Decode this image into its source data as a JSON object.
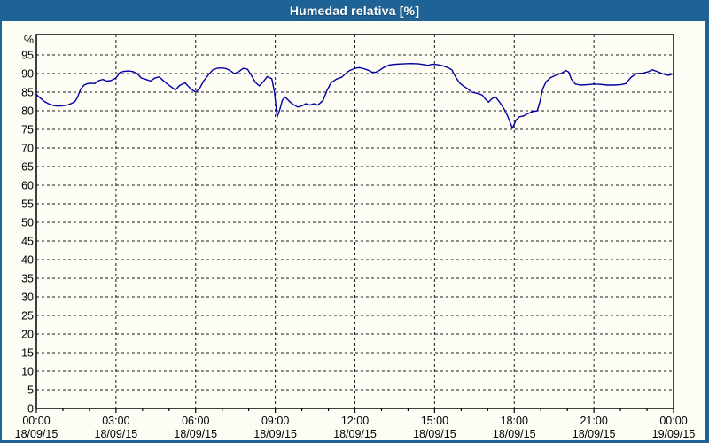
{
  "window": {
    "title": "Humedad relativa [%]",
    "colors": {
      "title_bar": "#1F6396",
      "frame": "#1F6396",
      "background": "#FDFDF5",
      "plot_border": "#000000",
      "grid": "#1A1A1A",
      "line": "#0000A0",
      "tick_text": "#000000",
      "title_text": "#FFFFFF"
    }
  },
  "chart_data": {
    "type": "line",
    "title": "Humedad relativa [%]",
    "legend": "none",
    "grid": "dashed",
    "y_axis": {
      "unit_label": "%",
      "min": 0,
      "max": 100,
      "tick_step": 5,
      "tick_labels": [
        "95",
        "90",
        "85",
        "80",
        "75",
        "70",
        "65",
        "60",
        "55",
        "50",
        "45",
        "40",
        "35",
        "30",
        "25",
        "20",
        "15",
        "10",
        "5",
        "0"
      ]
    },
    "x_axis": {
      "range_hours": [
        0,
        24
      ],
      "major_tick_interval_hours": 3,
      "minor_tick_interval_hours": 1,
      "tick_labels": [
        {
          "time": "00:00",
          "date": "18/09/15"
        },
        {
          "time": "03:00",
          "date": "18/09/15"
        },
        {
          "time": "06:00",
          "date": "18/09/15"
        },
        {
          "time": "09:00",
          "date": "18/09/15"
        },
        {
          "time": "12:00",
          "date": "18/09/15"
        },
        {
          "time": "15:00",
          "date": "18/09/15"
        },
        {
          "time": "18:00",
          "date": "18/09/15"
        },
        {
          "time": "21:00",
          "date": "18/09/15"
        },
        {
          "time": "00:00",
          "date": "19/09/15"
        }
      ]
    },
    "series": [
      {
        "name": "Humedad relativa [%]",
        "color": "#0000A0",
        "points_hour_percent": [
          [
            0,
            84.4
          ],
          [
            0.15,
            83.4
          ],
          [
            0.3,
            82.5
          ],
          [
            0.45,
            81.9
          ],
          [
            0.6,
            81.5
          ],
          [
            0.75,
            81.3
          ],
          [
            0.9,
            81.3
          ],
          [
            1.05,
            81.4
          ],
          [
            1.2,
            81.6
          ],
          [
            1.33,
            82
          ],
          [
            1.45,
            82.4
          ],
          [
            1.55,
            83.6
          ],
          [
            1.67,
            85.8
          ],
          [
            1.8,
            86.9
          ],
          [
            1.93,
            87.3
          ],
          [
            2.07,
            87.4
          ],
          [
            2.2,
            87.3
          ],
          [
            2.35,
            88.1
          ],
          [
            2.5,
            88.4
          ],
          [
            2.65,
            88
          ],
          [
            2.8,
            88.1
          ],
          [
            3,
            88.8
          ],
          [
            3.15,
            90.3
          ],
          [
            3.3,
            90.6
          ],
          [
            3.5,
            90.7
          ],
          [
            3.65,
            90.5
          ],
          [
            3.8,
            90
          ],
          [
            3.95,
            88.8
          ],
          [
            4.1,
            88.5
          ],
          [
            4.3,
            88
          ],
          [
            4.47,
            88.8
          ],
          [
            4.63,
            89.1
          ],
          [
            4.86,
            87.6
          ],
          [
            5.08,
            86.4
          ],
          [
            5.24,
            85.6
          ],
          [
            5.4,
            86.8
          ],
          [
            5.6,
            87.5
          ],
          [
            5.8,
            86
          ],
          [
            6,
            85
          ],
          [
            6.15,
            86
          ],
          [
            6.3,
            88
          ],
          [
            6.5,
            89.8
          ],
          [
            6.65,
            91
          ],
          [
            6.8,
            91.4
          ],
          [
            7,
            91.5
          ],
          [
            7.15,
            91.3
          ],
          [
            7.3,
            90.8
          ],
          [
            7.45,
            90
          ],
          [
            7.6,
            90.4
          ],
          [
            7.8,
            91.4
          ],
          [
            7.95,
            91.2
          ],
          [
            8.1,
            89.5
          ],
          [
            8.25,
            87.6
          ],
          [
            8.4,
            86.7
          ],
          [
            8.55,
            87.8
          ],
          [
            8.7,
            89.2
          ],
          [
            8.87,
            88.6
          ],
          [
            8.97,
            85
          ],
          [
            9.07,
            78.3
          ],
          [
            9.17,
            80.3
          ],
          [
            9.27,
            82.9
          ],
          [
            9.37,
            83.7
          ],
          [
            9.55,
            82.4
          ],
          [
            9.7,
            81.6
          ],
          [
            9.85,
            81
          ],
          [
            10,
            81.3
          ],
          [
            10.15,
            81.9
          ],
          [
            10.3,
            81.5
          ],
          [
            10.45,
            81.9
          ],
          [
            10.6,
            81.5
          ],
          [
            10.8,
            82.8
          ],
          [
            10.95,
            85.5
          ],
          [
            11.1,
            87.5
          ],
          [
            11.3,
            88.5
          ],
          [
            11.5,
            89
          ],
          [
            11.65,
            90
          ],
          [
            11.8,
            90.8
          ],
          [
            12,
            91.4
          ],
          [
            12.17,
            91.6
          ],
          [
            12.33,
            91.3
          ],
          [
            12.5,
            90.9
          ],
          [
            12.63,
            90.4
          ],
          [
            12.77,
            90.3
          ],
          [
            12.93,
            90.9
          ],
          [
            13.1,
            91.7
          ],
          [
            13.3,
            92.3
          ],
          [
            13.55,
            92.5
          ],
          [
            13.8,
            92.6
          ],
          [
            14.1,
            92.7
          ],
          [
            14.4,
            92.6
          ],
          [
            14.6,
            92.4
          ],
          [
            14.75,
            92.2
          ],
          [
            14.9,
            92.5
          ],
          [
            15.1,
            92.4
          ],
          [
            15.3,
            92.1
          ],
          [
            15.5,
            91.6
          ],
          [
            15.65,
            91
          ],
          [
            15.8,
            89
          ],
          [
            15.95,
            87.4
          ],
          [
            16.1,
            86.6
          ],
          [
            16.25,
            85.9
          ],
          [
            16.4,
            85
          ],
          [
            16.6,
            84.7
          ],
          [
            16.8,
            84.2
          ],
          [
            16.93,
            83
          ],
          [
            17.03,
            82.3
          ],
          [
            17.17,
            83.3
          ],
          [
            17.3,
            83.7
          ],
          [
            17.45,
            82.3
          ],
          [
            17.6,
            80.7
          ],
          [
            17.75,
            78.6
          ],
          [
            17.93,
            75.3
          ],
          [
            18.07,
            77.5
          ],
          [
            18.2,
            78.4
          ],
          [
            18.35,
            78.6
          ],
          [
            18.5,
            79.2
          ],
          [
            18.7,
            79.8
          ],
          [
            18.87,
            80
          ],
          [
            18.97,
            82.5
          ],
          [
            19.07,
            85.8
          ],
          [
            19.2,
            87.8
          ],
          [
            19.37,
            88.9
          ],
          [
            19.55,
            89.5
          ],
          [
            19.75,
            90
          ],
          [
            19.95,
            90.8
          ],
          [
            20.05,
            90.4
          ],
          [
            20.15,
            88.5
          ],
          [
            20.3,
            87.2
          ],
          [
            20.5,
            86.9
          ],
          [
            20.75,
            87
          ],
          [
            21,
            87.2
          ],
          [
            21.25,
            87.1
          ],
          [
            21.5,
            86.9
          ],
          [
            21.75,
            86.9
          ],
          [
            22,
            87
          ],
          [
            22.2,
            87.3
          ],
          [
            22.4,
            89
          ],
          [
            22.6,
            90
          ],
          [
            22.85,
            90.1
          ],
          [
            23.05,
            90.5
          ],
          [
            23.2,
            91
          ],
          [
            23.4,
            90.5
          ],
          [
            23.6,
            89.9
          ],
          [
            23.8,
            89.5
          ],
          [
            23.97,
            89.9
          ]
        ]
      }
    ]
  }
}
